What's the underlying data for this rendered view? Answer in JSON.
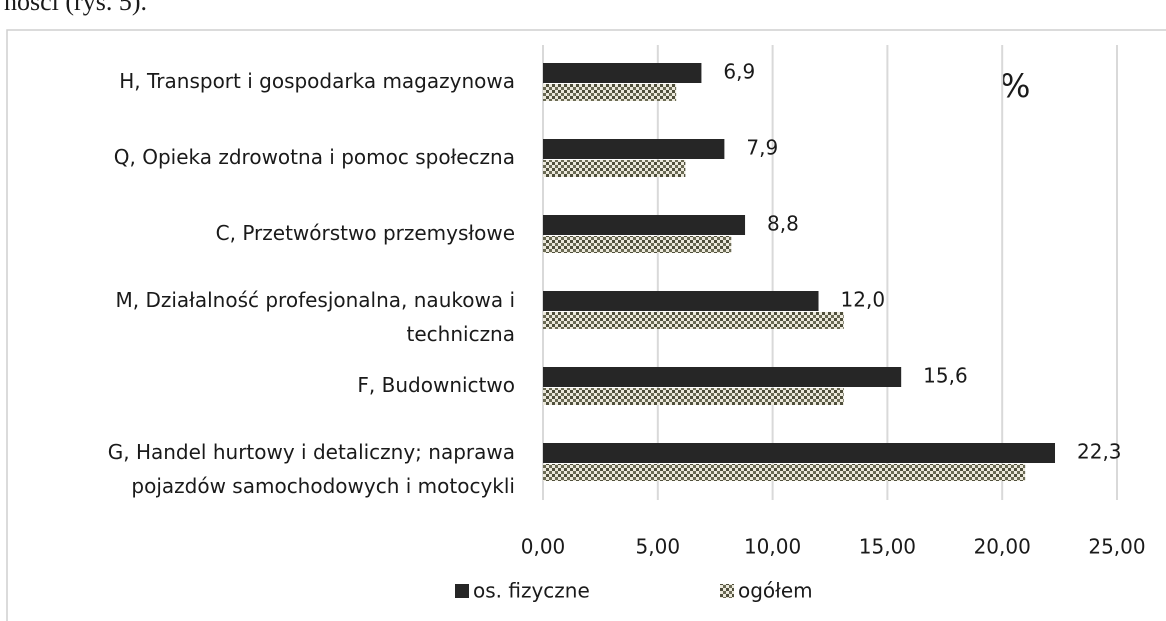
{
  "context_text": "ności (rys. 5).",
  "chart_data": {
    "type": "barh",
    "annotation": "%",
    "categories": [
      [
        "H, Transport i gospodarka magazynowa"
      ],
      [
        "Q, Opieka zdrowotna i pomoc społeczna"
      ],
      [
        "C, Przetwórstwo przemysłowe"
      ],
      [
        "M, Działalność profesjonalna, naukowa i",
        "techniczna"
      ],
      [
        "F, Budownictwo"
      ],
      [
        "G, Handel hurtowy i detaliczny; naprawa",
        "pojazdów samochodowych i motocykli"
      ]
    ],
    "series": [
      {
        "name": "os. fizyczne",
        "color": "#262626",
        "values": [
          6.9,
          7.9,
          8.8,
          12.0,
          15.6,
          22.3
        ],
        "value_labels": [
          "6,9",
          "7,9",
          "8,8",
          "12,0",
          "15,6",
          "22,3"
        ]
      },
      {
        "name": "ogółem",
        "color": "#5a5a46",
        "pattern": "dots",
        "values": [
          5.8,
          6.2,
          8.2,
          13.1,
          13.1,
          21.0
        ]
      }
    ],
    "xlim": [
      0,
      25
    ],
    "xticks": [
      {
        "value": 0,
        "label": "0,00"
      },
      {
        "value": 5,
        "label": "5,00"
      },
      {
        "value": 10,
        "label": "10,00"
      },
      {
        "value": 15,
        "label": "15,00"
      },
      {
        "value": 20,
        "label": "20,00"
      },
      {
        "value": 25,
        "label": "25,00"
      }
    ],
    "grid": true,
    "legend": "bottom"
  }
}
